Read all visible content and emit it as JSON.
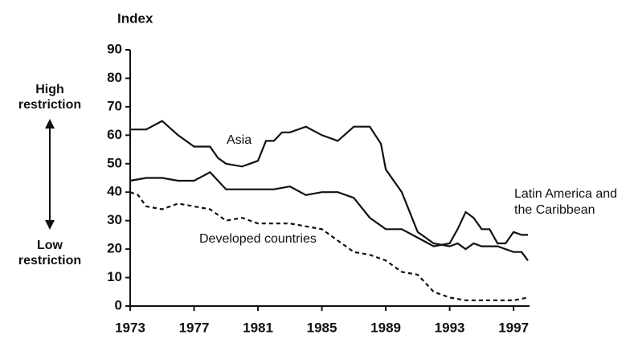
{
  "chart_data": {
    "type": "line",
    "y_axis_label": "Index",
    "high_label": "High restriction",
    "low_label": "Low restriction",
    "xlim": [
      1973,
      1998
    ],
    "xticks": [
      1973,
      1977,
      1981,
      1985,
      1989,
      1993,
      1997
    ],
    "ylim": [
      0,
      90
    ],
    "yticks": [
      0,
      10,
      20,
      30,
      40,
      50,
      60,
      70,
      80,
      90
    ],
    "series": [
      {
        "name": "Asia",
        "color": "#111111",
        "dash": false,
        "x": [
          1973,
          1974,
          1975,
          1976,
          1977,
          1978,
          1978.5,
          1979,
          1980,
          1981,
          1981.5,
          1982,
          1982.5,
          1983,
          1984,
          1985,
          1986,
          1987,
          1988,
          1988.7,
          1989,
          1990,
          1991,
          1992,
          1993,
          1993.5,
          1994,
          1994.5,
          1995,
          1996,
          1997,
          1997.5,
          1997.9
        ],
        "values": [
          62,
          62,
          65,
          60,
          56,
          56,
          52,
          50,
          49,
          51,
          58,
          58,
          61,
          61,
          63,
          60,
          58,
          63,
          63,
          57,
          48,
          40,
          26,
          22,
          21,
          22,
          20,
          22,
          21,
          21,
          19,
          19,
          16
        ]
      },
      {
        "name": "Latin America and the Caribbean",
        "color": "#111111",
        "dash": false,
        "x": [
          1973,
          1974,
          1975,
          1976,
          1977,
          1978,
          1979,
          1980,
          1981,
          1982,
          1983,
          1984,
          1985,
          1986,
          1987,
          1988,
          1989,
          1990,
          1991,
          1992,
          1993,
          1993.5,
          1994,
          1994.5,
          1995,
          1995.5,
          1996,
          1996.5,
          1997,
          1997.5,
          1997.9
        ],
        "values": [
          44,
          45,
          45,
          44,
          44,
          47,
          41,
          41,
          41,
          41,
          42,
          39,
          40,
          40,
          38,
          31,
          27,
          27,
          24,
          21,
          22,
          27,
          33,
          31,
          27,
          27,
          22,
          22,
          26,
          25,
          25
        ]
      },
      {
        "name": "Developed countries",
        "color": "#111111",
        "dash": true,
        "x": [
          1973,
          1973.5,
          1974,
          1975,
          1976,
          1977,
          1978,
          1979,
          1980,
          1981,
          1982,
          1983,
          1984,
          1985,
          1986,
          1987,
          1988,
          1989,
          1990,
          1991,
          1992,
          1993,
          1994,
          1995,
          1996,
          1997,
          1997.9
        ],
        "values": [
          40,
          39,
          35,
          34,
          36,
          35,
          34,
          30,
          31,
          29,
          29,
          29,
          28,
          27,
          23,
          19,
          18,
          16,
          12,
          11,
          5,
          3,
          2,
          2,
          2,
          2,
          3
        ]
      }
    ]
  }
}
